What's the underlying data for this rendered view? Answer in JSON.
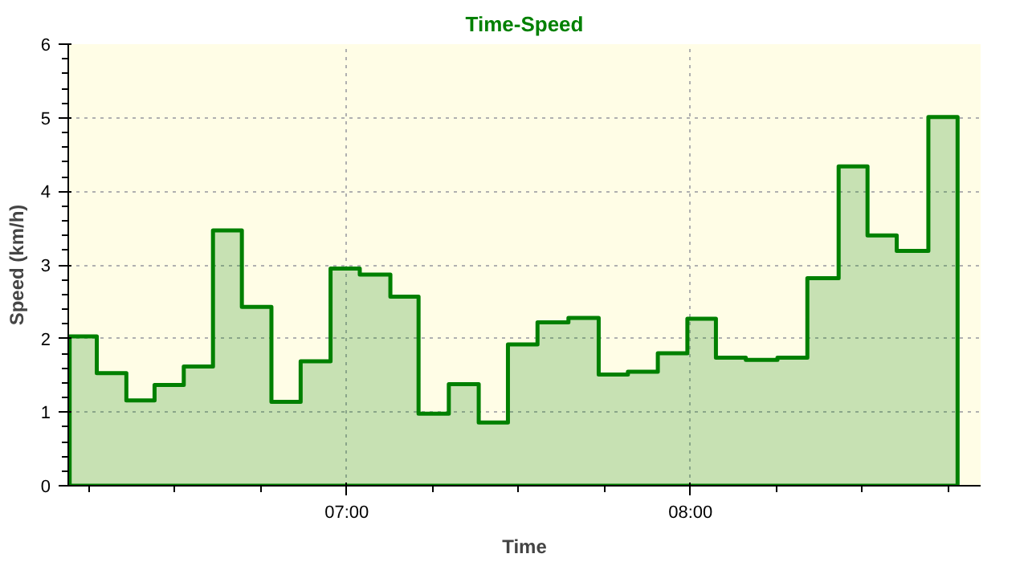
{
  "chart_data": {
    "type": "area",
    "title": "Time-Speed",
    "xlabel": "Time",
    "ylabel": "Speed (km/h)",
    "x": [
      6.194,
      6.273,
      6.359,
      6.441,
      6.526,
      6.611,
      6.695,
      6.781,
      6.866,
      6.953,
      7.038,
      7.127,
      7.209,
      7.297,
      7.384,
      7.469,
      7.555,
      7.645,
      7.733,
      7.818,
      7.905,
      7.991,
      8.074,
      8.161,
      8.253,
      8.34,
      8.431,
      8.515,
      8.6,
      8.692,
      8.777
    ],
    "series": [
      {
        "color": "#008000",
        "values": [
          2.03,
          1.53,
          1.16,
          1.37,
          1.62,
          3.47,
          2.43,
          1.14,
          1.69,
          2.95,
          2.87,
          2.57,
          0.98,
          1.38,
          0.86,
          1.92,
          2.22,
          2.28,
          1.51,
          1.55,
          1.8,
          2.27,
          1.74,
          1.71,
          1.74,
          2.82,
          4.34,
          3.4,
          3.19,
          5.01,
          5.01
        ]
      }
    ],
    "xlim": [
      6.19,
      8.844
    ],
    "ylim": [
      0,
      6
    ],
    "xticks": [
      {
        "value": 7,
        "label": "07:00"
      },
      {
        "value": 8,
        "label": "08:00"
      }
    ],
    "yticks": [
      0,
      1,
      2,
      3,
      4,
      5,
      6
    ],
    "grid": true,
    "line_style": "solid",
    "marker": "none"
  }
}
